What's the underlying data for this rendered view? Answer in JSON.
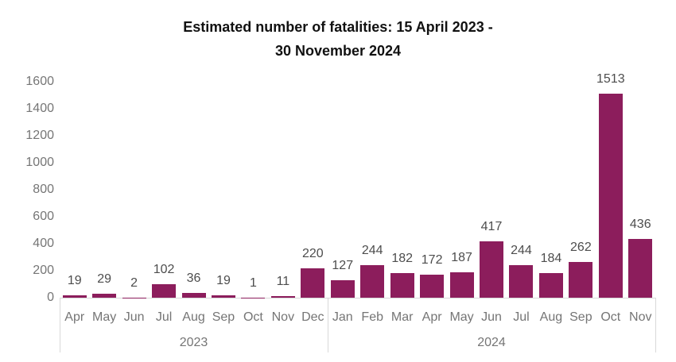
{
  "title": {
    "line1": "Estimated number of fatalities: 15 April 2023 -",
    "line2": "30 November 2024"
  },
  "chart_data": {
    "type": "bar",
    "title": "Estimated number of fatalities: 15 April 2023 - 30 November 2024",
    "categories": [
      "Apr",
      "May",
      "Jun",
      "Jul",
      "Aug",
      "Sep",
      "Oct",
      "Nov",
      "Dec",
      "Jan",
      "Feb",
      "Mar",
      "Apr",
      "May",
      "Jun",
      "Jul",
      "Aug",
      "Sep",
      "Oct",
      "Nov"
    ],
    "values": [
      19,
      29,
      2,
      102,
      36,
      19,
      1,
      11,
      220,
      127,
      244,
      182,
      172,
      187,
      417,
      244,
      184,
      262,
      1513,
      436
    ],
    "year_groups": [
      {
        "year": "2023",
        "months": 9
      },
      {
        "year": "2024",
        "months": 11
      }
    ],
    "yticks": [
      0,
      200,
      400,
      600,
      800,
      1000,
      1200,
      1400,
      1600
    ],
    "ylim": [
      0,
      1600
    ],
    "xlabel": "",
    "ylabel": "",
    "grid": false,
    "value_labels": true,
    "legend": "none",
    "bar_color": "#8C1D5C"
  },
  "colors": {
    "bar": "#8C1D5C",
    "title_text": "#111111",
    "value_label_text": "#4d4d4d",
    "axis_text": "#757575",
    "axis_line": "#d9d9d9",
    "background": "#ffffff"
  }
}
